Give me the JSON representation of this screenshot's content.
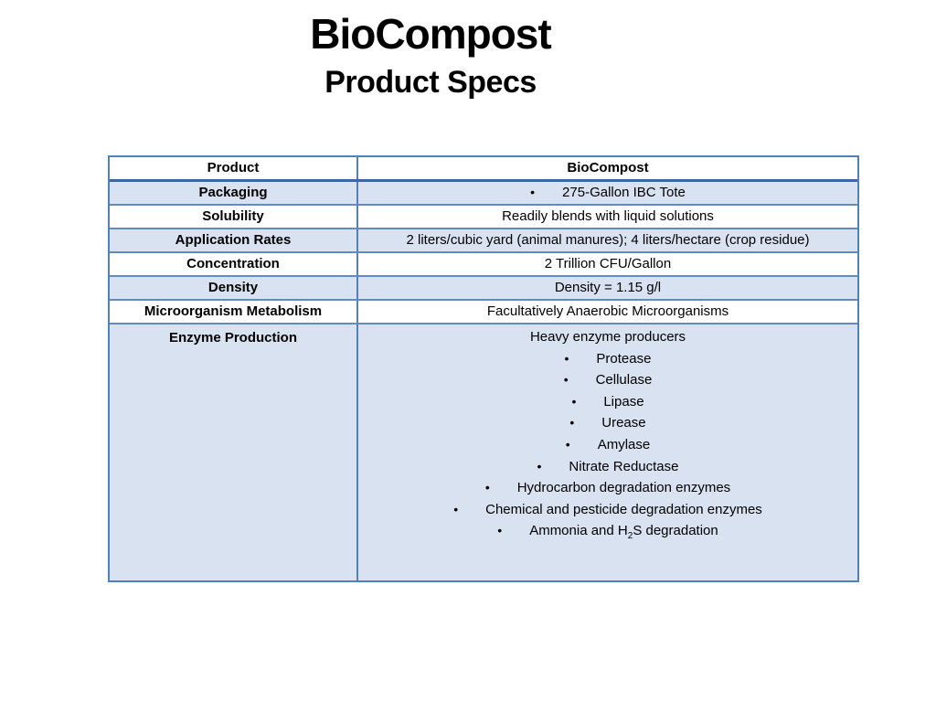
{
  "title": {
    "line1": "BioCompost",
    "line2": "Product Specs"
  },
  "icons": {
    "bullet": "•"
  },
  "colors": {
    "row_shade": "#d9e2f0",
    "table_border": "#4f81bd",
    "header_rule": "#3b67a5",
    "text": "#000000",
    "background": "#ffffff"
  },
  "table": {
    "header": {
      "col1": "Product",
      "col2": "BioCompost"
    },
    "rows": [
      {
        "label": "Packaging",
        "value": "275-Gallon IBC Tote",
        "bulleted": true,
        "shaded": true
      },
      {
        "label": "Solubility",
        "value": "Readily blends with liquid solutions",
        "bulleted": false,
        "shaded": false
      },
      {
        "label": "Application Rates",
        "value": "2 liters/cubic yard (animal manures); 4 liters/hectare (crop residue)",
        "bulleted": false,
        "shaded": true
      },
      {
        "label": "Concentration",
        "value": "2 Trillion CFU/Gallon",
        "bulleted": false,
        "shaded": false
      },
      {
        "label": "Density",
        "value": "Density = 1.15 g/l",
        "bulleted": false,
        "shaded": true
      },
      {
        "label": "Microorganism Metabolism",
        "value": "Facultatively Anaerobic Microorganisms",
        "bulleted": false,
        "shaded": false
      },
      {
        "label": "Enzyme Production",
        "shaded": true,
        "intro": "Heavy enzyme producers",
        "items": [
          "Protease",
          "Cellulase",
          "Lipase",
          "Urease",
          "Amylase",
          "Nitrate Reductase",
          "Hydrocarbon degradation enzymes",
          "Chemical and pesticide degradation enzymes"
        ],
        "last_item": {
          "pre": "Ammonia and H",
          "sub": "2",
          "post": "S degradation"
        }
      }
    ]
  }
}
